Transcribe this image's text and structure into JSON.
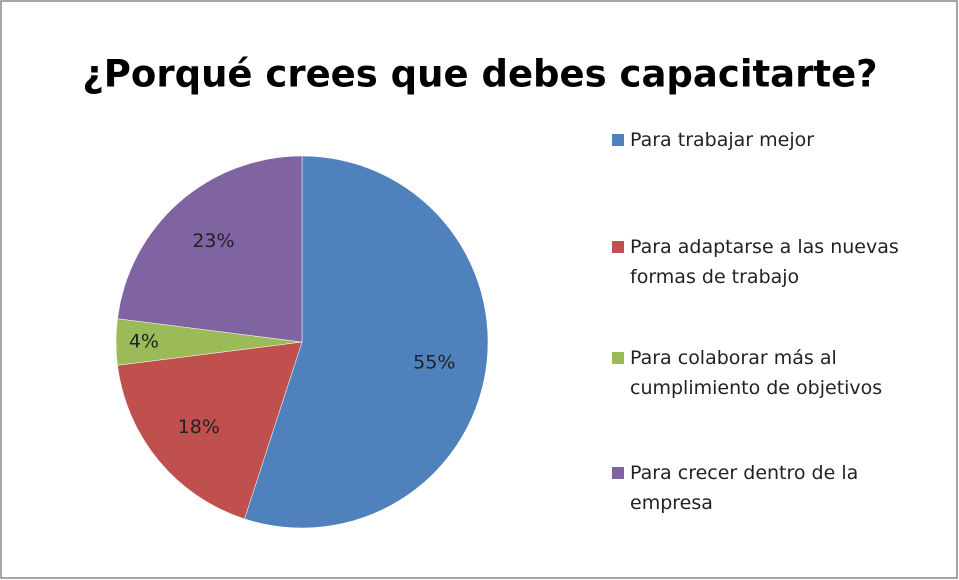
{
  "chart_data": {
    "type": "pie",
    "title": "¿Porqué crees que debes capacitarte?",
    "categories": [
      "Para trabajar mejor",
      "Para adaptarse a las nuevas formas de trabajo",
      "Para colaborar más al cumplimiento de objetivos",
      "Para crecer dentro de la empresa"
    ],
    "values": [
      55,
      18,
      4,
      23
    ],
    "value_labels": [
      "55%",
      "18%",
      "4%",
      "23%"
    ],
    "colors": [
      "#4f81bd",
      "#c0504d",
      "#9bbb59",
      "#8064a2"
    ],
    "legend": "right"
  }
}
